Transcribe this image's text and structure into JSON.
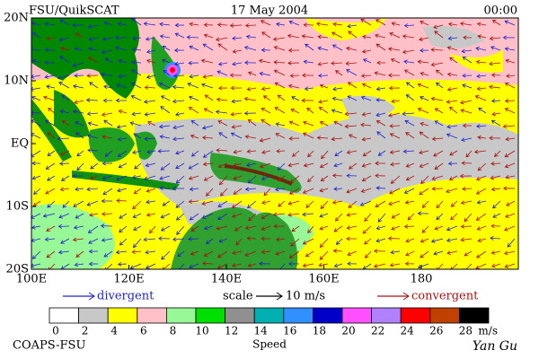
{
  "header": {
    "source": "FSU/QuikSCAT",
    "date": "17 May 2004",
    "time": "00:00"
  },
  "map": {
    "lat_labels": [
      "20N",
      "10N",
      "EQ",
      "10S",
      "20S"
    ],
    "lon_labels": [
      "100E",
      "120E",
      "140E",
      "160E",
      "180"
    ]
  },
  "legend": {
    "divergent": "divergent",
    "scale": "scale",
    "scale_value": "10 m/s",
    "convergent": "convergent",
    "divergent_color": "#2222cc",
    "convergent_color": "#aa1111"
  },
  "colorbar": {
    "colors": [
      "#ffffff",
      "#c8c8c8",
      "#ffff00",
      "#ffc0c8",
      "#98f898",
      "#00e000",
      "#909090",
      "#00b0b0",
      "#3090ff",
      "#0000c8",
      "#ff50ff",
      "#b080ff",
      "#ff0000",
      "#c04000",
      "#000000"
    ],
    "ticks": [
      0,
      2,
      4,
      6,
      8,
      10,
      12,
      14,
      16,
      18,
      20,
      22,
      24,
      26,
      28
    ],
    "unit": "m/s",
    "title": "Speed"
  },
  "footer": {
    "left": "COAPS-FSU",
    "signature": "Yan Gu"
  }
}
